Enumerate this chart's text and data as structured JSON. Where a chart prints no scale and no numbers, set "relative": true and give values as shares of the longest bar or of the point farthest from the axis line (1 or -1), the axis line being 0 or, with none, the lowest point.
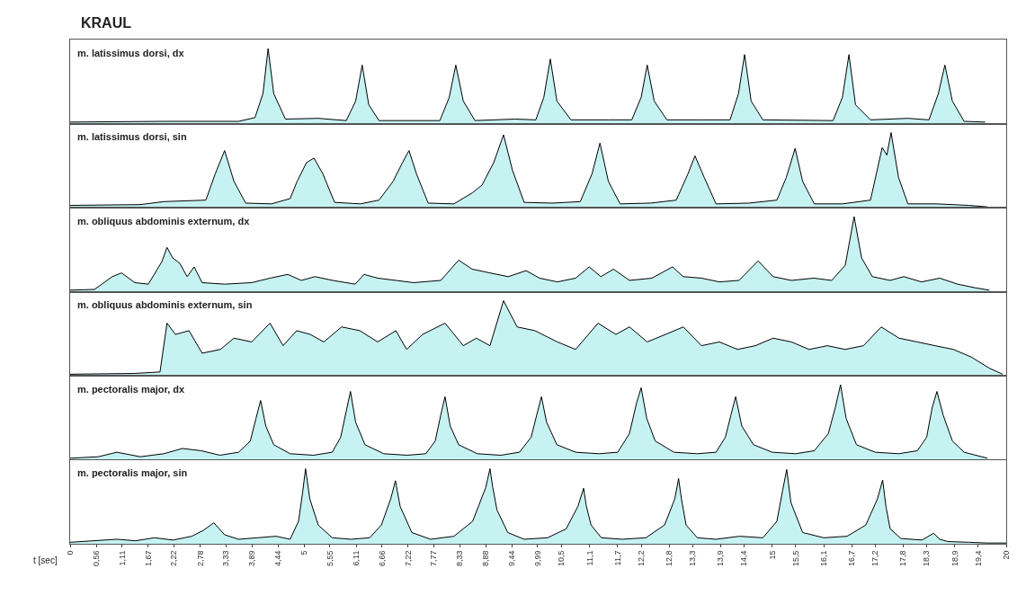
{
  "chart_data": [
    {
      "type": "area",
      "relative": true,
      "title": "KRAUL",
      "xlim": [
        0,
        20
      ],
      "tick_labels": false,
      "x": [
        0,
        2,
        3.6,
        3.95,
        4.12,
        4.23,
        4.35,
        4.6,
        5.3,
        5.9,
        6.1,
        6.24,
        6.38,
        6.6,
        7.9,
        8.1,
        8.24,
        8.4,
        8.65,
        9.5,
        9.95,
        10.12,
        10.26,
        10.4,
        10.7,
        11.5,
        12.0,
        12.2,
        12.33,
        12.48,
        12.75,
        13.5,
        14.1,
        14.28,
        14.41,
        14.55,
        14.8,
        16.3,
        16.5,
        16.64,
        16.78,
        17.1,
        17.9,
        18.35,
        18.55,
        18.69,
        18.85,
        19.1,
        19.55
      ],
      "series": [
        {
          "name": "m. latissimus dorsi, dx",
          "color": "#c6f2f2",
          "values": [
            0.02,
            0.03,
            0.03,
            0.08,
            0.4,
            1,
            0.4,
            0.06,
            0.07,
            0.04,
            0.3,
            0.78,
            0.25,
            0.04,
            0.04,
            0.35,
            0.78,
            0.3,
            0.04,
            0.06,
            0.05,
            0.35,
            0.86,
            0.3,
            0.05,
            0.05,
            0.05,
            0.35,
            0.78,
            0.3,
            0.05,
            0.05,
            0.05,
            0.4,
            0.92,
            0.3,
            0.05,
            0.04,
            0.35,
            0.92,
            0.25,
            0.05,
            0.07,
            0.05,
            0.4,
            0.78,
            0.3,
            0.03,
            0.02
          ]
        }
      ]
    },
    {
      "type": "area",
      "relative": true,
      "xlim": [
        0,
        20
      ],
      "tick_labels": false,
      "x": [
        0,
        1.5,
        2.0,
        2.9,
        3.1,
        3.3,
        3.5,
        3.75,
        4.3,
        4.7,
        4.85,
        5.05,
        5.21,
        5.4,
        5.65,
        6.2,
        6.6,
        6.9,
        7.1,
        7.24,
        7.4,
        7.65,
        8.2,
        8.6,
        8.8,
        9.05,
        9.26,
        9.45,
        9.7,
        10.3,
        10.9,
        11.15,
        11.32,
        11.5,
        11.75,
        12.4,
        12.95,
        13.2,
        13.35,
        13.55,
        13.8,
        14.5,
        15.1,
        15.3,
        15.49,
        15.65,
        15.9,
        16.5,
        17.1,
        17.35,
        17.45,
        17.54,
        17.7,
        17.9,
        18.5,
        19.2,
        19.6
      ],
      "series": [
        {
          "name": "m. latissimus dorsi, sin",
          "color": "#c6f2f2",
          "values": [
            0.03,
            0.04,
            0.08,
            0.1,
            0.45,
            0.76,
            0.35,
            0.06,
            0.05,
            0.12,
            0.35,
            0.6,
            0.66,
            0.45,
            0.07,
            0.05,
            0.1,
            0.35,
            0.6,
            0.76,
            0.45,
            0.06,
            0.05,
            0.2,
            0.3,
            0.6,
            0.97,
            0.5,
            0.07,
            0.06,
            0.08,
            0.45,
            0.86,
            0.35,
            0.05,
            0.06,
            0.1,
            0.45,
            0.69,
            0.4,
            0.05,
            0.06,
            0.1,
            0.4,
            0.79,
            0.35,
            0.05,
            0.05,
            0.1,
            0.8,
            0.7,
            1,
            0.4,
            0.05,
            0.05,
            0.03,
            0.01
          ]
        }
      ]
    },
    {
      "type": "area",
      "relative": true,
      "xlim": [
        0,
        20
      ],
      "tick_labels": false,
      "x": [
        0,
        0.52,
        0.9,
        1.1,
        1.38,
        1.67,
        1.96,
        2.07,
        2.19,
        2.34,
        2.5,
        2.65,
        2.82,
        3.3,
        3.88,
        4.27,
        4.65,
        4.94,
        5.23,
        5.61,
        6.09,
        6.28,
        6.57,
        6.96,
        7.34,
        7.92,
        8.3,
        8.59,
        8.97,
        9.36,
        9.74,
        10.03,
        10.41,
        10.8,
        11.09,
        11.34,
        11.61,
        11.95,
        12.43,
        12.87,
        13.1,
        13.49,
        13.87,
        14.29,
        14.7,
        15.02,
        15.41,
        15.89,
        16.27,
        16.56,
        16.75,
        16.91,
        17.14,
        17.52,
        17.81,
        18.19,
        18.58,
        18.96,
        19.35,
        19.64
      ],
      "series": [
        {
          "name": "m. obliquus abdominis externum, dx",
          "color": "#c6f2f2",
          "values": [
            0.02,
            0.03,
            0.2,
            0.25,
            0.12,
            0.1,
            0.4,
            0.59,
            0.45,
            0.38,
            0.2,
            0.33,
            0.12,
            0.1,
            0.12,
            0.18,
            0.23,
            0.15,
            0.2,
            0.15,
            0.1,
            0.23,
            0.18,
            0.15,
            0.12,
            0.15,
            0.42,
            0.3,
            0.25,
            0.2,
            0.28,
            0.18,
            0.13,
            0.18,
            0.33,
            0.2,
            0.3,
            0.15,
            0.18,
            0.33,
            0.2,
            0.18,
            0.13,
            0.15,
            0.41,
            0.2,
            0.15,
            0.18,
            0.15,
            0.35,
            1,
            0.45,
            0.2,
            0.15,
            0.2,
            0.13,
            0.18,
            0.1,
            0.05,
            0.02
          ]
        }
      ]
    },
    {
      "type": "area",
      "relative": true,
      "xlim": [
        0,
        20
      ],
      "tick_labels": false,
      "x": [
        0,
        1.38,
        1.92,
        2.07,
        2.25,
        2.54,
        2.82,
        3.21,
        3.5,
        3.88,
        4.27,
        4.55,
        4.84,
        5.13,
        5.42,
        5.8,
        6.19,
        6.57,
        6.96,
        7.19,
        7.53,
        8.01,
        8.4,
        8.68,
        8.97,
        9.26,
        9.55,
        9.93,
        10.41,
        10.8,
        11.28,
        11.66,
        11.95,
        12.33,
        12.72,
        13.1,
        13.49,
        13.87,
        14.26,
        14.64,
        15.02,
        15.41,
        15.79,
        16.18,
        16.56,
        16.95,
        17.33,
        17.71,
        18.1,
        18.48,
        18.87,
        19.25,
        19.64,
        19.92
      ],
      "series": [
        {
          "name": "m. obliquus abdominis externum, sin",
          "color": "#c6f2f2",
          "values": [
            0.02,
            0.03,
            0.05,
            0.7,
            0.55,
            0.6,
            0.3,
            0.35,
            0.5,
            0.45,
            0.7,
            0.4,
            0.6,
            0.55,
            0.45,
            0.65,
            0.6,
            0.45,
            0.6,
            0.35,
            0.55,
            0.7,
            0.4,
            0.5,
            0.4,
            1,
            0.65,
            0.6,
            0.45,
            0.35,
            0.7,
            0.55,
            0.65,
            0.45,
            0.55,
            0.65,
            0.4,
            0.45,
            0.35,
            0.4,
            0.5,
            0.45,
            0.35,
            0.4,
            0.35,
            0.4,
            0.65,
            0.5,
            0.45,
            0.4,
            0.35,
            0.25,
            0.1,
            0.02
          ]
        }
      ]
    },
    {
      "type": "area",
      "relative": true,
      "xlim": [
        0,
        20
      ],
      "tick_labels": false,
      "x": [
        0,
        0.6,
        1.0,
        1.5,
        2.0,
        2.4,
        2.8,
        3.2,
        3.6,
        3.85,
        3.97,
        4.07,
        4.18,
        4.35,
        4.7,
        5.2,
        5.6,
        5.78,
        5.9,
        5.99,
        6.1,
        6.3,
        6.7,
        7.2,
        7.6,
        7.8,
        7.92,
        8.01,
        8.12,
        8.3,
        8.7,
        9.2,
        9.6,
        9.85,
        9.97,
        10.07,
        10.18,
        10.4,
        10.8,
        11.3,
        11.7,
        11.95,
        12.1,
        12.2,
        12.32,
        12.5,
        12.9,
        13.4,
        13.8,
        14.0,
        14.12,
        14.22,
        14.35,
        14.6,
        15.0,
        15.5,
        15.9,
        16.2,
        16.35,
        16.46,
        16.58,
        16.8,
        17.2,
        17.7,
        18.1,
        18.3,
        18.42,
        18.52,
        18.65,
        18.85,
        19.1,
        19.6
      ],
      "series": [
        {
          "name": "m. pectoralis major, dx",
          "color": "#c6f2f2",
          "values": [
            0.02,
            0.04,
            0.1,
            0.04,
            0.08,
            0.15,
            0.12,
            0.06,
            0.1,
            0.25,
            0.55,
            0.79,
            0.45,
            0.2,
            0.08,
            0.06,
            0.1,
            0.3,
            0.65,
            0.91,
            0.5,
            0.2,
            0.08,
            0.06,
            0.08,
            0.25,
            0.6,
            0.84,
            0.45,
            0.2,
            0.08,
            0.06,
            0.1,
            0.3,
            0.6,
            0.84,
            0.5,
            0.2,
            0.1,
            0.08,
            0.1,
            0.35,
            0.75,
            0.96,
            0.55,
            0.25,
            0.1,
            0.08,
            0.1,
            0.3,
            0.6,
            0.84,
            0.45,
            0.2,
            0.1,
            0.08,
            0.12,
            0.35,
            0.7,
            1,
            0.55,
            0.2,
            0.1,
            0.08,
            0.12,
            0.3,
            0.7,
            0.91,
            0.6,
            0.25,
            0.1,
            0.02
          ]
        }
      ]
    },
    {
      "type": "area",
      "relative": true,
      "xlim": [
        0,
        20
      ],
      "tick_labels": "x",
      "xlabel": "t [sec]",
      "xticks": [
        0,
        {
          "value": 0.56,
          "label": "0,56"
        },
        {
          "value": 1.11,
          "label": "1,11"
        },
        {
          "value": 1.67,
          "label": "1,67"
        },
        {
          "value": 2.22,
          "label": "2,22"
        },
        {
          "value": 2.78,
          "label": "2,78"
        },
        {
          "value": 3.33,
          "label": "3,33"
        },
        {
          "value": 3.89,
          "label": "3,89"
        },
        {
          "value": 4.44,
          "label": "4,44"
        },
        5,
        {
          "value": 5.55,
          "label": "5,55"
        },
        {
          "value": 6.11,
          "label": "6,11"
        },
        {
          "value": 6.66,
          "label": "6,66"
        },
        {
          "value": 7.22,
          "label": "7,22"
        },
        {
          "value": 7.77,
          "label": "7,77"
        },
        {
          "value": 8.33,
          "label": "8,33"
        },
        {
          "value": 8.88,
          "label": "8,88"
        },
        {
          "value": 9.44,
          "label": "9,44"
        },
        {
          "value": 9.99,
          "label": "9,99"
        },
        {
          "value": 10.5,
          "label": "10,5"
        },
        {
          "value": 11.1,
          "label": "11,1"
        },
        {
          "value": 11.7,
          "label": "11,7"
        },
        {
          "value": 12.2,
          "label": "12,2"
        },
        {
          "value": 12.8,
          "label": "12,8"
        },
        {
          "value": 13.3,
          "label": "13,3"
        },
        {
          "value": 13.9,
          "label": "13,9"
        },
        {
          "value": 14.4,
          "label": "14,4"
        },
        15,
        {
          "value": 15.5,
          "label": "15,5"
        },
        {
          "value": 16.1,
          "label": "16,1"
        },
        {
          "value": 16.7,
          "label": "16,7"
        },
        {
          "value": 17.2,
          "label": "17,2"
        },
        {
          "value": 17.8,
          "label": "17,8"
        },
        {
          "value": 18.3,
          "label": "18,3"
        },
        {
          "value": 18.9,
          "label": "18,9"
        },
        {
          "value": 19.4,
          "label": "19,4"
        },
        20
      ],
      "x": [
        0,
        0.5,
        1.0,
        1.4,
        1.8,
        2.2,
        2.6,
        2.85,
        3.07,
        3.3,
        3.6,
        4.0,
        4.4,
        4.7,
        4.88,
        4.97,
        5.03,
        5.12,
        5.3,
        5.6,
        6.0,
        6.4,
        6.65,
        6.85,
        6.95,
        7.05,
        7.3,
        7.7,
        8.2,
        8.6,
        8.88,
        8.97,
        9.03,
        9.12,
        9.35,
        9.7,
        10.2,
        10.6,
        10.85,
        10.97,
        11.03,
        11.13,
        11.35,
        11.8,
        12.3,
        12.7,
        12.92,
        13.0,
        13.06,
        13.16,
        13.4,
        13.8,
        14.3,
        14.8,
        15.1,
        15.22,
        15.31,
        15.4,
        15.65,
        16.1,
        16.6,
        17.0,
        17.25,
        17.36,
        17.43,
        17.52,
        17.75,
        18.2,
        18.45,
        18.58,
        18.75,
        19.2,
        19.6,
        20
      ],
      "series": [
        {
          "name": "m. pectoralis major, sin",
          "color": "#c6f2f2",
          "values": [
            0.02,
            0.04,
            0.06,
            0.04,
            0.08,
            0.05,
            0.1,
            0.18,
            0.28,
            0.12,
            0.06,
            0.08,
            0.1,
            0.06,
            0.3,
            0.7,
            1,
            0.6,
            0.25,
            0.08,
            0.06,
            0.08,
            0.25,
            0.6,
            0.84,
            0.5,
            0.15,
            0.06,
            0.1,
            0.3,
            0.75,
            1,
            0.75,
            0.45,
            0.15,
            0.06,
            0.08,
            0.2,
            0.5,
            0.74,
            0.5,
            0.25,
            0.08,
            0.06,
            0.08,
            0.25,
            0.6,
            0.87,
            0.6,
            0.25,
            0.08,
            0.06,
            0.1,
            0.08,
            0.3,
            0.7,
            0.99,
            0.55,
            0.15,
            0.08,
            0.1,
            0.25,
            0.6,
            0.85,
            0.5,
            0.2,
            0.07,
            0.05,
            0.14,
            0.06,
            0.03,
            0.02,
            0.01,
            0.01
          ]
        }
      ]
    }
  ]
}
